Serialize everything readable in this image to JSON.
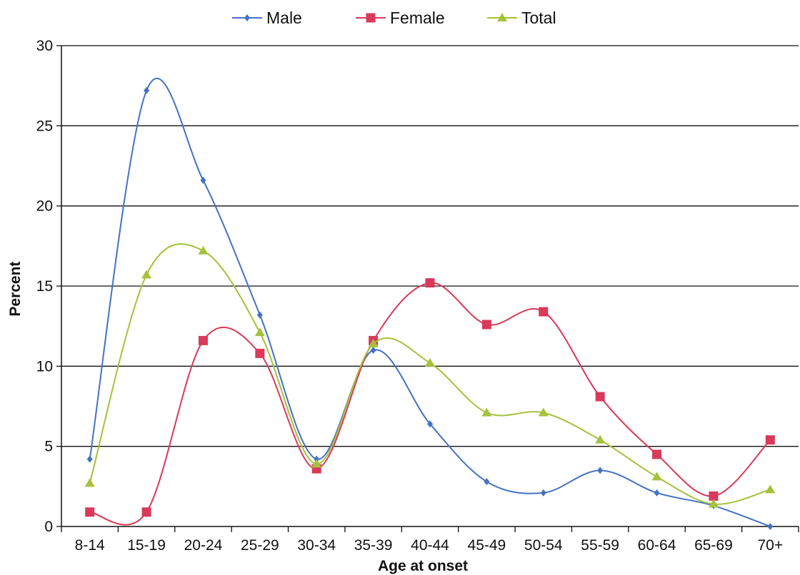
{
  "chart_data": {
    "type": "line",
    "title": "",
    "xlabel": "Age at onset",
    "ylabel": "Percent",
    "categories": [
      "8-14",
      "15-19",
      "20-24",
      "25-29",
      "30-34",
      "35-39",
      "40-44",
      "45-49",
      "50-54",
      "55-59",
      "60-64",
      "65-69",
      "70+"
    ],
    "ylim": [
      0,
      30
    ],
    "yticks": [
      0,
      5,
      10,
      15,
      20,
      25,
      30
    ],
    "grid": true,
    "legend_position": "top-center",
    "series": [
      {
        "name": "Male",
        "color": "#4472c4",
        "marker": "diamond",
        "values": [
          4.2,
          27.2,
          21.6,
          13.2,
          4.2,
          11.0,
          6.4,
          2.8,
          2.1,
          3.5,
          2.1,
          1.3,
          0.0
        ]
      },
      {
        "name": "Female",
        "color": "#d9395a",
        "marker": "square",
        "values": [
          0.9,
          0.9,
          11.6,
          10.8,
          3.6,
          11.6,
          15.2,
          12.6,
          13.4,
          8.1,
          4.5,
          1.9,
          5.4
        ]
      },
      {
        "name": "Total",
        "color": "#a4c23a",
        "marker": "triangle",
        "values": [
          2.7,
          15.7,
          17.2,
          12.1,
          3.9,
          11.4,
          10.2,
          7.1,
          7.1,
          5.4,
          3.1,
          1.4,
          2.3
        ]
      }
    ]
  }
}
